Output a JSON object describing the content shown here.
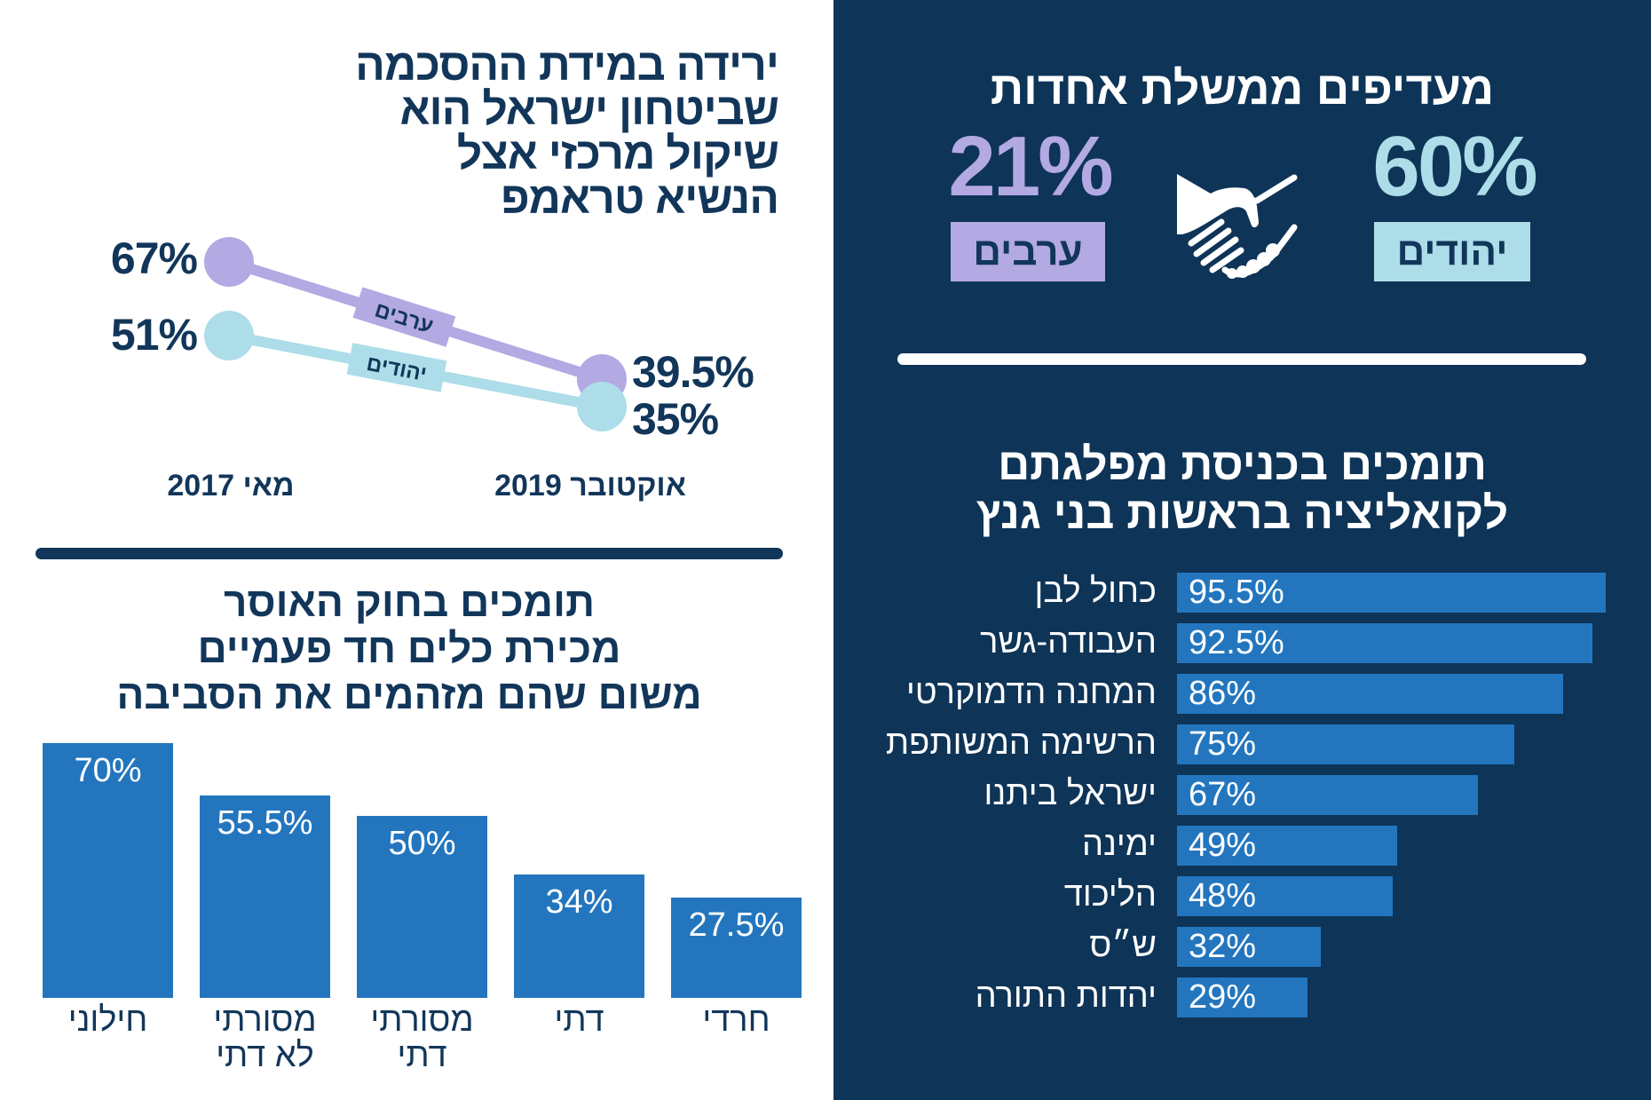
{
  "colors": {
    "navy": "#12365a",
    "panel": "#0e3457",
    "bar_blue": "#2376be",
    "arabs_purple": "#b3a9e3",
    "jews_cyan": "#acdde8",
    "white": "#ffffff"
  },
  "icons": {
    "handshake": "handshake-icon"
  },
  "left_top": {
    "title_lines": [
      "ירידה במידת ההסכמה",
      "שביטחון ישראל הוא",
      "שיקול מרכזי אצל",
      "הנשיא טראמפ"
    ]
  },
  "top_right": {
    "title": "מעדיפים ממשלת אחדות",
    "arabs": {
      "value": "21%",
      "label": "ערבים"
    },
    "jews": {
      "value": "60%",
      "label": "יהודים"
    }
  },
  "right_chart": {
    "title_lines": [
      "תומכים בכניסת מפלגתם",
      "לקואליציה בראשות בני גנץ"
    ]
  },
  "bottom_left": {
    "title_lines": [
      "תומכים בחוק האוסר",
      "מכירת כלים חד פעמיים",
      "משום שהם מזהמים את הסביבה"
    ]
  },
  "chart_data": [
    {
      "type": "line",
      "title": "ירידה במידת ההסכמה שביטחון ישראל הוא שיקול מרכזי אצל הנשיא טראמפ",
      "x": [
        "מאי 2017",
        "אוקטובר 2019"
      ],
      "series": [
        {
          "name": "ערבים",
          "values": [
            67,
            39.5
          ],
          "labels": [
            "67%",
            "39.5%"
          ],
          "color": "#b3a9e3"
        },
        {
          "name": "יהודים",
          "values": [
            51,
            35
          ],
          "labels": [
            "51%",
            "35%"
          ],
          "color": "#acdde8"
        }
      ],
      "xlabel": "",
      "ylabel": "",
      "grid": false,
      "legend": "inline-on-lines"
    },
    {
      "type": "bar",
      "orientation": "horizontal",
      "title": "תומכים בכניסת מפלגתם לקואליציה בראשות בני גנץ",
      "categories": [
        "כחול לבן",
        "העבודה-גשר",
        "המחנה הדמוקרטי",
        "הרשימה המשותפת",
        "ישראל ביתנו",
        "ימינה",
        "הליכוד",
        "ש״ס",
        "יהדות התורה"
      ],
      "values": [
        95.5,
        92.5,
        86,
        75,
        67,
        49,
        48,
        32,
        29
      ],
      "labels": [
        "95.5%",
        "92.5%",
        "86%",
        "75%",
        "67%",
        "49%",
        "48%",
        "32%",
        "29%"
      ],
      "xlim": [
        0,
        100
      ],
      "grid": false
    },
    {
      "type": "bar",
      "orientation": "vertical",
      "title": "תומכים בחוק האוסר מכירת כלים חד פעמיים משום שהם מזהמים את הסביבה",
      "categories": [
        [
          "חילוני"
        ],
        [
          "מסורתי",
          "לא דתי"
        ],
        [
          "מסורתי",
          "דתי"
        ],
        [
          "דתי"
        ],
        [
          "חרדי"
        ]
      ],
      "values": [
        70,
        55.5,
        50,
        34,
        27.5
      ],
      "labels": [
        "70%",
        "55.5%",
        "50%",
        "34%",
        "27.5%"
      ],
      "ylim": [
        0,
        100
      ],
      "grid": false
    }
  ]
}
